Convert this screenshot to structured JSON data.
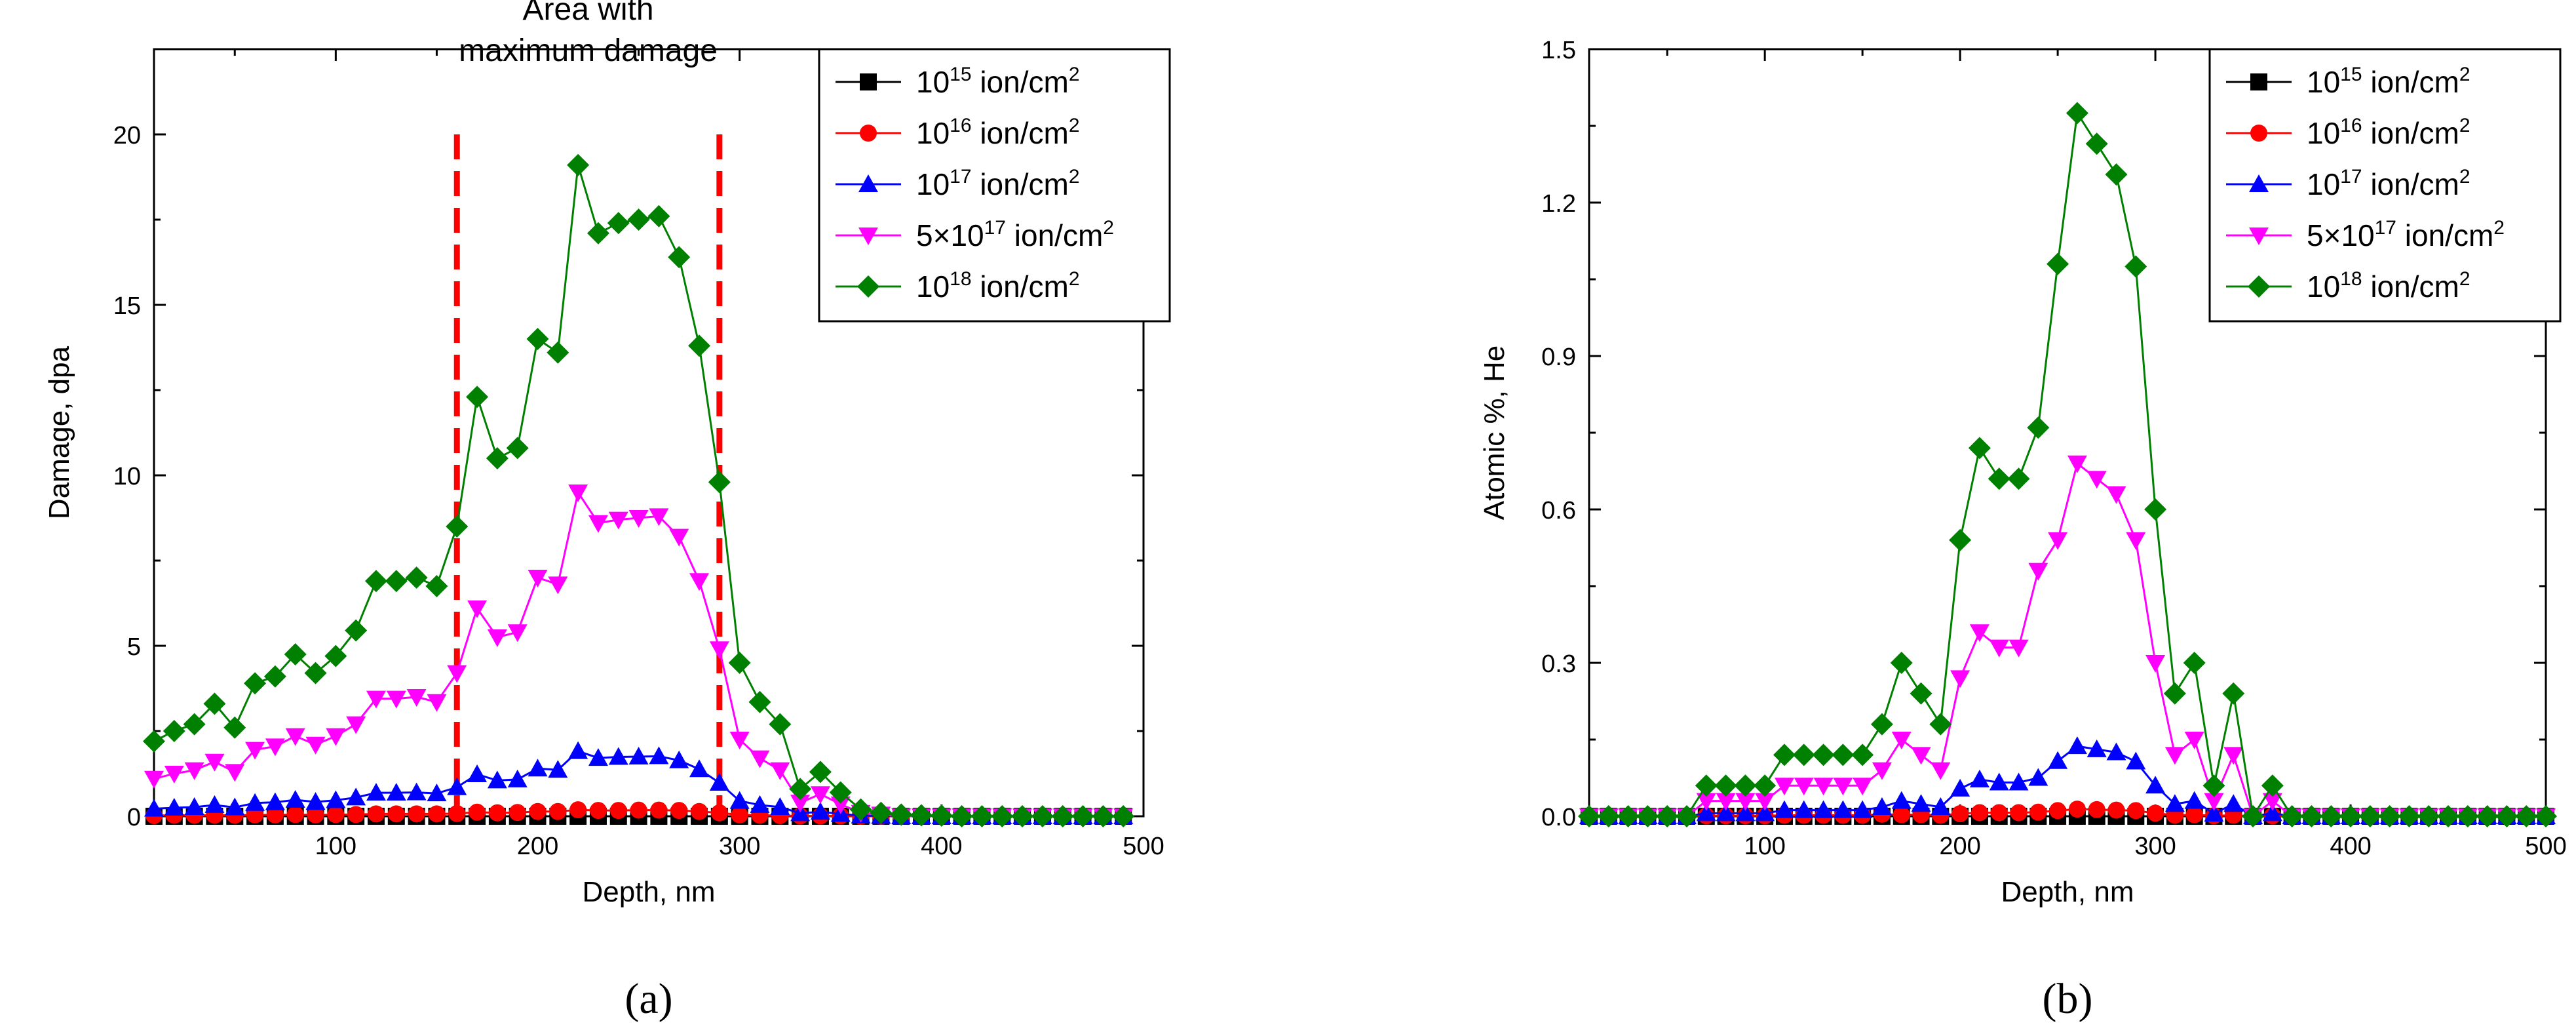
{
  "chart_data": [
    {
      "type": "line",
      "panel_label": "(a)",
      "xlabel": "Depth, nm",
      "ylabel": "Damage, dpa",
      "xlim": [
        10,
        500
      ],
      "ylim": [
        0,
        22.5
      ],
      "xticks": [
        100,
        200,
        300,
        400,
        500
      ],
      "yticks": [
        0,
        5,
        10,
        15,
        20
      ],
      "annotation": {
        "lines": [
          "Area",
          "with",
          "maximum damage"
        ],
        "region_x": [
          160,
          290
        ]
      },
      "x": [
        10,
        20,
        30,
        40,
        50,
        60,
        70,
        80,
        90,
        100,
        110,
        120,
        130,
        140,
        150,
        160,
        170,
        180,
        190,
        200,
        210,
        220,
        230,
        240,
        250,
        260,
        270,
        280,
        290,
        300,
        310,
        320,
        330,
        340,
        350,
        360,
        370,
        380,
        390,
        400,
        410,
        420,
        430,
        440,
        450,
        460,
        470,
        480,
        490
      ],
      "series": [
        {
          "name": "10^15 ion/cm^2",
          "label_parts": [
            "10",
            "15",
            " ion/cm",
            "2"
          ],
          "color": "#000000",
          "marker": "square",
          "values": [
            0,
            0,
            0,
            0,
            0,
            0,
            0,
            0,
            0,
            0,
            0,
            0,
            0,
            0,
            0,
            0,
            0,
            0,
            0,
            0,
            0,
            0,
            0,
            0,
            0,
            0,
            0,
            0,
            0,
            0,
            0,
            0,
            0,
            0,
            0,
            0,
            0,
            0,
            0,
            0,
            0,
            0,
            0,
            0,
            0,
            0,
            0,
            0,
            0
          ]
        },
        {
          "name": "10^16 ion/cm^2",
          "label_parts": [
            "10",
            "16",
            " ion/cm",
            "2"
          ],
          "color": "#ff0000",
          "marker": "circle",
          "values": [
            0.02,
            0.03,
            0.03,
            0.03,
            0.03,
            0.04,
            0.04,
            0.05,
            0.04,
            0.05,
            0.05,
            0.07,
            0.07,
            0.07,
            0.07,
            0.08,
            0.12,
            0.1,
            0.11,
            0.14,
            0.14,
            0.19,
            0.17,
            0.17,
            0.18,
            0.18,
            0.17,
            0.14,
            0.1,
            0.04,
            0.03,
            0.02,
            0.01,
            0.01,
            0.01,
            0,
            0,
            0,
            0,
            0,
            0,
            0,
            0,
            0,
            0,
            0,
            0,
            0,
            0
          ]
        },
        {
          "name": "10^17 ion/cm^2",
          "label_parts": [
            "10",
            "17",
            " ion/cm",
            "2"
          ],
          "color": "#0000ff",
          "marker": "triangle",
          "values": [
            0.22,
            0.25,
            0.27,
            0.33,
            0.26,
            0.39,
            0.41,
            0.48,
            0.42,
            0.47,
            0.55,
            0.69,
            0.69,
            0.7,
            0.67,
            0.85,
            1.23,
            1.05,
            1.08,
            1.4,
            1.36,
            1.91,
            1.71,
            1.74,
            1.75,
            1.76,
            1.64,
            1.38,
            0.98,
            0.45,
            0.33,
            0.27,
            0.09,
            0.13,
            0.07,
            0.02,
            0.01,
            0,
            0,
            0,
            0,
            0,
            0,
            0,
            0,
            0,
            0,
            0,
            0
          ]
        },
        {
          "name": "5×10^17 ion/cm^2",
          "label_parts": [
            "5×10",
            "17",
            " ion/cm",
            "2"
          ],
          "color": "#ff00ff",
          "marker": "triangle-down",
          "values": [
            1.1,
            1.25,
            1.35,
            1.6,
            1.3,
            1.95,
            2.05,
            2.35,
            2.1,
            2.35,
            2.7,
            3.45,
            3.45,
            3.5,
            3.35,
            4.2,
            6.1,
            5.25,
            5.4,
            7.0,
            6.8,
            9.5,
            8.6,
            8.7,
            8.75,
            8.8,
            8.2,
            6.9,
            4.9,
            2.25,
            1.7,
            1.35,
            0.4,
            0.65,
            0.35,
            0.1,
            0.05,
            0,
            0,
            0,
            0,
            0,
            0,
            0,
            0,
            0,
            0,
            0,
            0
          ]
        },
        {
          "name": "10^18 ion/cm^2",
          "label_parts": [
            "10",
            "18",
            " ion/cm",
            "2"
          ],
          "color": "#008000",
          "marker": "diamond",
          "values": [
            2.2,
            2.5,
            2.7,
            3.3,
            2.6,
            3.9,
            4.1,
            4.75,
            4.2,
            4.7,
            5.45,
            6.9,
            6.9,
            7.0,
            6.75,
            8.5,
            12.3,
            10.5,
            10.8,
            14.0,
            13.6,
            19.1,
            17.1,
            17.4,
            17.5,
            17.6,
            16.4,
            13.8,
            9.8,
            4.5,
            3.35,
            2.7,
            0.8,
            1.3,
            0.7,
            0.2,
            0.1,
            0.05,
            0.03,
            0.02,
            0,
            0,
            0,
            0,
            0,
            0,
            0,
            0,
            0
          ]
        }
      ]
    },
    {
      "type": "line",
      "panel_label": "(b)",
      "xlabel": "Depth, nm",
      "ylabel": "Atomic %, He",
      "xlim": [
        10,
        500
      ],
      "ylim": [
        0,
        1.5
      ],
      "xticks": [
        100,
        200,
        300,
        400,
        500
      ],
      "yticks": [
        "0.0",
        "0.3",
        "0.6",
        "0.9",
        "1.2",
        "1.5"
      ],
      "x": [
        10,
        20,
        30,
        40,
        50,
        60,
        70,
        80,
        90,
        100,
        110,
        120,
        130,
        140,
        150,
        160,
        170,
        180,
        190,
        200,
        210,
        220,
        230,
        240,
        250,
        260,
        270,
        280,
        290,
        300,
        310,
        320,
        330,
        340,
        350,
        360,
        370,
        380,
        390,
        400,
        410,
        420,
        430,
        440,
        450,
        460,
        470,
        480,
        490,
        500
      ],
      "series": [
        {
          "name": "10^15 ion/cm^2",
          "label_parts": [
            "10",
            "15",
            " ion/cm",
            "2"
          ],
          "color": "#000000",
          "marker": "square",
          "values": [
            0,
            0,
            0,
            0,
            0,
            0,
            0,
            0,
            0,
            0,
            0,
            0,
            0,
            0,
            0,
            0,
            0,
            0,
            0,
            0,
            0,
            0,
            0,
            0,
            0,
            0,
            0,
            0,
            0,
            0,
            0,
            0,
            0,
            0,
            0,
            0,
            0,
            0,
            0,
            0,
            0,
            0,
            0,
            0,
            0,
            0,
            0,
            0,
            0,
            0
          ]
        },
        {
          "name": "10^16 ion/cm^2",
          "label_parts": [
            "10",
            "16",
            " ion/cm",
            "2"
          ],
          "color": "#ff0000",
          "marker": "circle",
          "values": [
            0,
            0,
            0,
            0,
            0,
            0,
            0.001,
            0.001,
            0.001,
            0.001,
            0.002,
            0.002,
            0.002,
            0.002,
            0.002,
            0.004,
            0.003,
            0.003,
            0.002,
            0.005,
            0.007,
            0.007,
            0.007,
            0.008,
            0.011,
            0.014,
            0.013,
            0.012,
            0.011,
            0.006,
            0.002,
            0.003,
            0.001,
            0.002,
            0,
            0.001,
            0,
            0,
            0,
            0,
            0,
            0,
            0,
            0,
            0,
            0,
            0,
            0,
            0,
            0
          ]
        },
        {
          "name": "10^17 ion/cm^2",
          "label_parts": [
            "10",
            "17",
            " ion/cm",
            "2"
          ],
          "color": "#0000ff",
          "marker": "triangle",
          "values": [
            0,
            0,
            0,
            0,
            0,
            0,
            0.006,
            0.006,
            0.006,
            0.006,
            0.012,
            0.012,
            0.012,
            0.012,
            0.012,
            0.018,
            0.03,
            0.024,
            0.018,
            0.054,
            0.072,
            0.066,
            0.066,
            0.075,
            0.108,
            0.137,
            0.131,
            0.125,
            0.107,
            0.06,
            0.024,
            0.03,
            0.005,
            0.024,
            0,
            0.006,
            0,
            0,
            0,
            0,
            0,
            0,
            0,
            0,
            0,
            0,
            0,
            0,
            0,
            0
          ]
        },
        {
          "name": "5×10^17 ion/cm^2",
          "label_parts": [
            "5×10",
            "17",
            " ion/cm",
            "2"
          ],
          "color": "#ff00ff",
          "marker": "triangle-down",
          "values": [
            0,
            0,
            0,
            0,
            0,
            0,
            0.03,
            0.03,
            0.03,
            0.03,
            0.06,
            0.06,
            0.06,
            0.06,
            0.06,
            0.09,
            0.15,
            0.12,
            0.09,
            0.27,
            0.36,
            0.33,
            0.33,
            0.48,
            0.54,
            0.69,
            0.66,
            0.63,
            0.54,
            0.3,
            0.12,
            0.15,
            0.03,
            0.12,
            0,
            0.03,
            0,
            0,
            0,
            0,
            0,
            0,
            0,
            0,
            0,
            0,
            0,
            0,
            0,
            0
          ]
        },
        {
          "name": "10^18 ion/cm^2",
          "label_parts": [
            "10",
            "18",
            " ion/cm",
            "2"
          ],
          "color": "#008000",
          "marker": "diamond",
          "values": [
            0,
            0,
            0,
            0,
            0,
            0,
            0.06,
            0.06,
            0.06,
            0.06,
            0.12,
            0.12,
            0.12,
            0.12,
            0.12,
            0.18,
            0.3,
            0.24,
            0.18,
            0.54,
            0.72,
            0.66,
            0.66,
            0.76,
            1.08,
            1.375,
            1.315,
            1.255,
            1.075,
            0.6,
            0.24,
            0.3,
            0.06,
            0.24,
            0,
            0.06,
            0,
            0,
            0,
            0,
            0,
            0,
            0,
            0,
            0,
            0,
            0,
            0,
            0,
            0
          ]
        }
      ]
    }
  ]
}
